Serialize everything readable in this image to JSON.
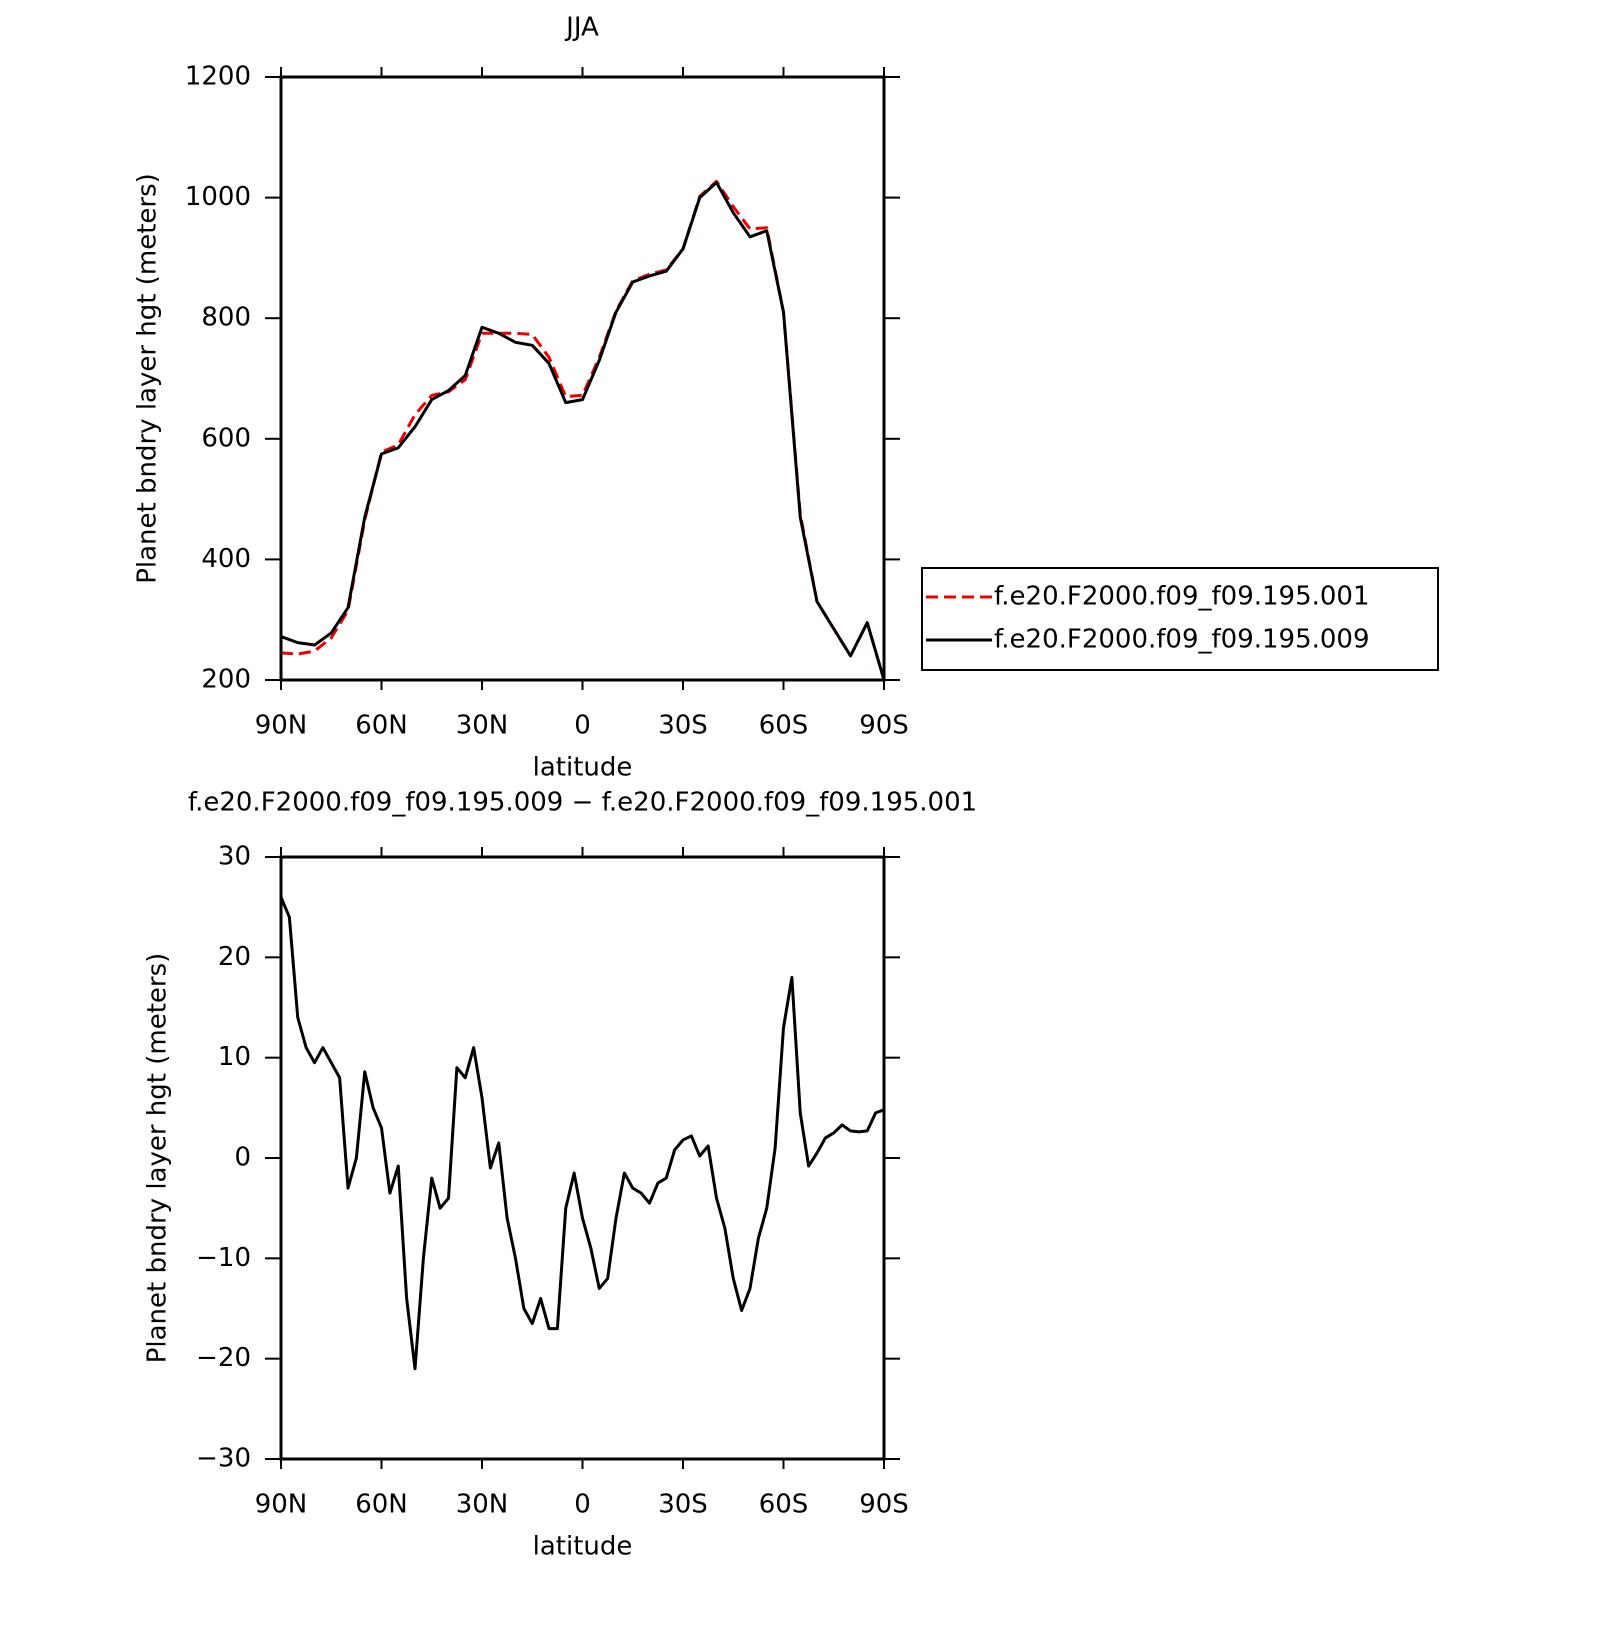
{
  "chart_data": [
    {
      "type": "line",
      "title": "JJA",
      "xlabel": "latitude",
      "ylabel": "Planet bndry layer hgt (meters)",
      "x": [
        90,
        85,
        80,
        75,
        70,
        65,
        60,
        55,
        50,
        45,
        40,
        35,
        30,
        25,
        20,
        15,
        10,
        5,
        0,
        -5,
        -10,
        -15,
        -20,
        -25,
        -30,
        -35,
        -40,
        -45,
        -50,
        -55,
        -60,
        -65,
        -70,
        -75,
        -80,
        -85,
        -90
      ],
      "series": [
        {
          "name": "f.e20.F2000.f09_f09.195.001",
          "color": "#ee0000",
          "linestyle": "dashed",
          "values": [
            245,
            243,
            248,
            270,
            315,
            465,
            578,
            590,
            640,
            672,
            678,
            698,
            775,
            775,
            775,
            773,
            735,
            670,
            672,
            735,
            812,
            862,
            873,
            880,
            915,
            1002,
            1027,
            985,
            948,
            950,
            810,
            475,
            330,
            285,
            240,
            295,
            200
          ]
        },
        {
          "name": "f.e20.F2000.f09_f09.195.009",
          "color": "#000000",
          "linestyle": "solid",
          "values": [
            272,
            262,
            258,
            278,
            320,
            470,
            575,
            585,
            620,
            665,
            680,
            705,
            785,
            775,
            760,
            755,
            725,
            660,
            665,
            730,
            810,
            860,
            870,
            878,
            915,
            1000,
            1025,
            975,
            935,
            945,
            810,
            470,
            330,
            285,
            240,
            295,
            200
          ]
        }
      ],
      "xlim": [
        90,
        -90
      ],
      "xticks": [
        {
          "value": 90,
          "label": "90N"
        },
        {
          "value": 60,
          "label": "60N"
        },
        {
          "value": 30,
          "label": "30N"
        },
        0,
        {
          "value": -30,
          "label": "30S"
        },
        {
          "value": -60,
          "label": "60S"
        },
        {
          "value": -90,
          "label": "90S"
        }
      ],
      "ylim": [
        200,
        1200
      ],
      "yticks": [
        200,
        400,
        600,
        800,
        1000,
        1200
      ],
      "legend": "right"
    },
    {
      "type": "line",
      "title": "f.e20.F2000.f09_f09.195.009 − f.e20.F2000.f09_f09.195.001",
      "xlabel": "latitude",
      "ylabel": "Planet bndry layer hgt (meters)",
      "x": [
        90,
        87.5,
        85,
        82.5,
        80,
        77.5,
        75,
        72.5,
        70,
        67.5,
        65,
        62.5,
        60,
        57.5,
        55,
        52.5,
        50,
        47.5,
        45,
        42.5,
        40,
        37.5,
        35,
        32.5,
        30,
        27.5,
        25,
        22.5,
        20,
        17.5,
        15,
        12.5,
        10,
        7.5,
        5,
        2.5,
        0,
        -2.5,
        -5,
        -7.5,
        -10,
        -12.5,
        -15,
        -17.5,
        -20,
        -22.5,
        -25,
        -27.5,
        -30,
        -32.5,
        -35,
        -37.5,
        -40,
        -42.5,
        -45,
        -47.5,
        -50,
        -52.5,
        -55,
        -57.5,
        -60,
        -62.5,
        -65,
        -67.5,
        -70,
        -72.5,
        -75,
        -77.5,
        -80,
        -82.5,
        -85,
        -87.5,
        -90
      ],
      "color": "#000000",
      "values": [
        26,
        24,
        14,
        11,
        9.5,
        11,
        9.5,
        8,
        -3,
        0,
        8.6,
        5,
        3,
        -3.5,
        -0.8,
        -14,
        -21,
        -10,
        -2,
        -5,
        -4,
        9,
        8,
        11,
        6,
        -1,
        1.5,
        -6,
        -10,
        -15,
        -16.5,
        -14,
        -17,
        -17,
        -5,
        -1.5,
        -6,
        -9,
        -13,
        -12,
        -6,
        -1.5,
        -3,
        -3.5,
        -4.5,
        -2.5,
        -2,
        0.8,
        1.8,
        2.2,
        0.2,
        1.2,
        -4,
        -7,
        -12,
        -15.2,
        -13,
        -8,
        -5,
        1,
        13,
        18,
        4.5,
        -0.8,
        0.5,
        2,
        2.5,
        3.3,
        2.7,
        2.6,
        2.7,
        4.5,
        4.8
      ],
      "xlim": [
        90,
        -90
      ],
      "xticks": [
        {
          "value": 90,
          "label": "90N"
        },
        {
          "value": 60,
          "label": "60N"
        },
        {
          "value": 30,
          "label": "30N"
        },
        0,
        {
          "value": -30,
          "label": "30S"
        },
        {
          "value": -60,
          "label": "60S"
        },
        {
          "value": -90,
          "label": "90S"
        }
      ],
      "ylim": [
        -30,
        30
      ],
      "yticks": [
        {
          "value": -30,
          "label": "−30"
        },
        {
          "value": -20,
          "label": "−20"
        },
        {
          "value": -10,
          "label": "−10"
        },
        0,
        10,
        20,
        30
      ]
    }
  ]
}
